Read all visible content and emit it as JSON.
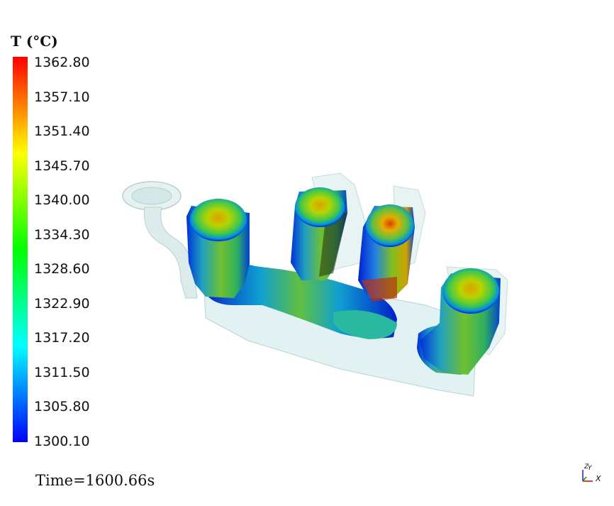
{
  "legend": {
    "title": "T (°C)",
    "ticks": [
      "1362.80",
      "1357.10",
      "1351.40",
      "1345.70",
      "1340.00",
      "1334.30",
      "1328.60",
      "1322.90",
      "1317.20",
      "1311.50",
      "1305.80",
      "1300.10"
    ],
    "colormap_stops": [
      "#ff0000",
      "#ff7f00",
      "#ffff00",
      "#7fff00",
      "#00ff00",
      "#00ff7f",
      "#00ffff",
      "#007fff",
      "#0000ff"
    ],
    "min": 1300.1,
    "max": 1362.8
  },
  "time_label": "Time=1600.66s",
  "axes": {
    "x": "X",
    "y": "Y",
    "z": "Z"
  },
  "chart_data": {
    "type": "heatmap",
    "title": "",
    "colorbar_label": "T (°C)",
    "range": [
      1300.1,
      1362.8
    ],
    "annotation": "Time=1600.66s"
  }
}
